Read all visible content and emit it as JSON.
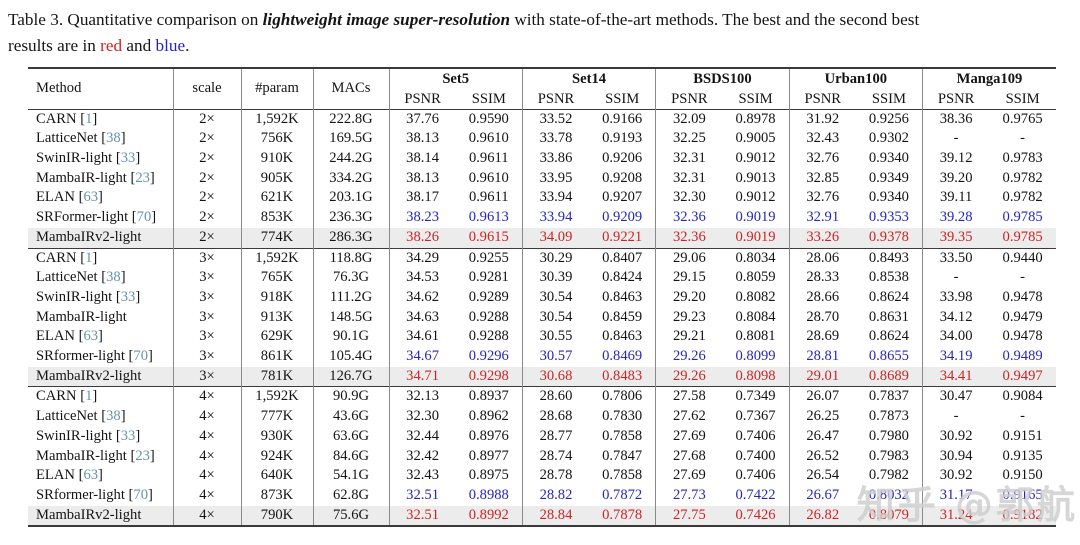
{
  "caption": {
    "label": "Table 3.",
    "body1": "  Quantitative comparison on ",
    "emph": "lightweight image super-resolution",
    "body2": " with state-of-the-art methods.  The best and the second best",
    "line2_prefix": "results are in ",
    "red_word": "red",
    "mid": " and ",
    "blue_word": "blue",
    "end": "."
  },
  "colors": {
    "best": "#cc2424",
    "second_best": "#2626bd",
    "citation": "#6394ad",
    "highlight_row": "#ececec"
  },
  "watermark": "知乎 @郭航",
  "table": {
    "header": {
      "method": "Method",
      "scale": "scale",
      "param": "#param",
      "macs": "MACs",
      "datasets": [
        "Set5",
        "Set14",
        "BSDS100",
        "Urban100",
        "Manga109"
      ],
      "metrics": [
        "PSNR",
        "SSIM"
      ]
    },
    "groups": [
      {
        "scale": "2×",
        "rows": [
          {
            "method": "CARN",
            "ref": "1",
            "scale": "2×",
            "params": "1,592K",
            "macs": "222.8G",
            "color": "",
            "highlight": false,
            "values": [
              "37.76",
              "0.9590",
              "33.52",
              "0.9166",
              "32.09",
              "0.8978",
              "31.92",
              "0.9256",
              "38.36",
              "0.9765"
            ]
          },
          {
            "method": "LatticeNet",
            "ref": "38",
            "scale": "2×",
            "params": "756K",
            "macs": "169.5G",
            "color": "",
            "highlight": false,
            "values": [
              "38.13",
              "0.9610",
              "33.78",
              "0.9193",
              "32.25",
              "0.9005",
              "32.43",
              "0.9302",
              "-",
              "-"
            ]
          },
          {
            "method": "SwinIR-light",
            "ref": "33",
            "scale": "2×",
            "params": "910K",
            "macs": "244.2G",
            "color": "",
            "highlight": false,
            "values": [
              "38.14",
              "0.9611",
              "33.86",
              "0.9206",
              "32.31",
              "0.9012",
              "32.76",
              "0.9340",
              "39.12",
              "0.9783"
            ]
          },
          {
            "method": "MambaIR-light",
            "ref": "23",
            "scale": "2×",
            "params": "905K",
            "macs": "334.2G",
            "color": "",
            "highlight": false,
            "values": [
              "38.13",
              "0.9610",
              "33.95",
              "0.9208",
              "32.31",
              "0.9013",
              "32.85",
              "0.9349",
              "39.20",
              "0.9782"
            ]
          },
          {
            "method": "ELAN",
            "ref": "63",
            "scale": "2×",
            "params": "621K",
            "macs": "203.1G",
            "color": "",
            "highlight": false,
            "values": [
              "38.17",
              "0.9611",
              "33.94",
              "0.9207",
              "32.30",
              "0.9012",
              "32.76",
              "0.9340",
              "39.11",
              "0.9782"
            ]
          },
          {
            "method": "SRFormer-light",
            "ref": "70",
            "scale": "2×",
            "params": "853K",
            "macs": "236.3G",
            "color": "blue",
            "highlight": false,
            "values": [
              "38.23",
              "0.9613",
              "33.94",
              "0.9209",
              "32.36",
              "0.9019",
              "32.91",
              "0.9353",
              "39.28",
              "0.9785"
            ]
          },
          {
            "method": "MambaIRv2-light",
            "ref": "",
            "scale": "2×",
            "params": "774K",
            "macs": "286.3G",
            "color": "red",
            "highlight": true,
            "values": [
              "38.26",
              "0.9615",
              "34.09",
              "0.9221",
              "32.36",
              "0.9019",
              "33.26",
              "0.9378",
              "39.35",
              "0.9785"
            ]
          }
        ]
      },
      {
        "scale": "3×",
        "rows": [
          {
            "method": "CARN",
            "ref": "1",
            "scale": "3×",
            "params": "1,592K",
            "macs": "118.8G",
            "color": "",
            "highlight": false,
            "values": [
              "34.29",
              "0.9255",
              "30.29",
              "0.8407",
              "29.06",
              "0.8034",
              "28.06",
              "0.8493",
              "33.50",
              "0.9440"
            ]
          },
          {
            "method": "LatticeNet",
            "ref": "38",
            "scale": "3×",
            "params": "765K",
            "macs": "76.3G",
            "color": "",
            "highlight": false,
            "values": [
              "34.53",
              "0.9281",
              "30.39",
              "0.8424",
              "29.15",
              "0.8059",
              "28.33",
              "0.8538",
              "-",
              "-"
            ]
          },
          {
            "method": "SwinIR-light",
            "ref": "33",
            "scale": "3×",
            "params": "918K",
            "macs": "111.2G",
            "color": "",
            "highlight": false,
            "values": [
              "34.62",
              "0.9289",
              "30.54",
              "0.8463",
              "29.20",
              "0.8082",
              "28.66",
              "0.8624",
              "33.98",
              "0.9478"
            ]
          },
          {
            "method": "MambaIR-light",
            "ref": "",
            "scale": "3×",
            "params": "913K",
            "macs": "148.5G",
            "color": "",
            "highlight": false,
            "values": [
              "34.63",
              "0.9288",
              "30.54",
              "0.8459",
              "29.23",
              "0.8084",
              "28.70",
              "0.8631",
              "34.12",
              "0.9479"
            ]
          },
          {
            "method": "ELAN",
            "ref": "63",
            "scale": "3×",
            "params": "629K",
            "macs": "90.1G",
            "color": "",
            "highlight": false,
            "values": [
              "34.61",
              "0.9288",
              "30.55",
              "0.8463",
              "29.21",
              "0.8081",
              "28.69",
              "0.8624",
              "34.00",
              "0.9478"
            ]
          },
          {
            "method": "SRformer-light",
            "ref": "70",
            "scale": "3×",
            "params": "861K",
            "macs": "105.4G",
            "color": "blue",
            "highlight": false,
            "values": [
              "34.67",
              "0.9296",
              "30.57",
              "0.8469",
              "29.26",
              "0.8099",
              "28.81",
              "0.8655",
              "34.19",
              "0.9489"
            ]
          },
          {
            "method": "MambaIRv2-light",
            "ref": "",
            "scale": "3×",
            "params": "781K",
            "macs": "126.7G",
            "color": "red",
            "highlight": true,
            "values": [
              "34.71",
              "0.9298",
              "30.68",
              "0.8483",
              "29.26",
              "0.8098",
              "29.01",
              "0.8689",
              "34.41",
              "0.9497"
            ]
          }
        ]
      },
      {
        "scale": "4×",
        "rows": [
          {
            "method": "CARN",
            "ref": "1",
            "scale": "4×",
            "params": "1,592K",
            "macs": "90.9G",
            "color": "",
            "highlight": false,
            "values": [
              "32.13",
              "0.8937",
              "28.60",
              "0.7806",
              "27.58",
              "0.7349",
              "26.07",
              "0.7837",
              "30.47",
              "0.9084"
            ]
          },
          {
            "method": "LatticeNet",
            "ref": "38",
            "scale": "4×",
            "params": "777K",
            "macs": "43.6G",
            "color": "",
            "highlight": false,
            "values": [
              "32.30",
              "0.8962",
              "28.68",
              "0.7830",
              "27.62",
              "0.7367",
              "26.25",
              "0.7873",
              "-",
              "-"
            ]
          },
          {
            "method": "SwinIR-light",
            "ref": "33",
            "scale": "4×",
            "params": "930K",
            "macs": "63.6G",
            "color": "",
            "highlight": false,
            "values": [
              "32.44",
              "0.8976",
              "28.77",
              "0.7858",
              "27.69",
              "0.7406",
              "26.47",
              "0.7980",
              "30.92",
              "0.9151"
            ]
          },
          {
            "method": "MambaIR-light",
            "ref": "23",
            "scale": "4×",
            "params": "924K",
            "macs": "84.6G",
            "color": "",
            "highlight": false,
            "values": [
              "32.42",
              "0.8977",
              "28.74",
              "0.7847",
              "27.68",
              "0.7400",
              "26.52",
              "0.7983",
              "30.94",
              "0.9135"
            ]
          },
          {
            "method": "ELAN",
            "ref": "63",
            "scale": "4×",
            "params": "640K",
            "macs": "54.1G",
            "color": "",
            "highlight": false,
            "values": [
              "32.43",
              "0.8975",
              "28.78",
              "0.7858",
              "27.69",
              "0.7406",
              "26.54",
              "0.7982",
              "30.92",
              "0.9150"
            ]
          },
          {
            "method": "SRformer-light",
            "ref": "70",
            "scale": "4×",
            "params": "873K",
            "macs": "62.8G",
            "color": "blue",
            "highlight": false,
            "values": [
              "32.51",
              "0.8988",
              "28.82",
              "0.7872",
              "27.73",
              "0.7422",
              "26.67",
              "0.8032",
              "31.17",
              "0.9165"
            ]
          },
          {
            "method": "MambaIRv2-light",
            "ref": "",
            "scale": "4×",
            "params": "790K",
            "macs": "75.6G",
            "color": "red",
            "highlight": true,
            "values": [
              "32.51",
              "0.8992",
              "28.84",
              "0.7878",
              "27.75",
              "0.7426",
              "26.82",
              "0.8079",
              "31.24",
              "0.9182"
            ]
          }
        ]
      }
    ]
  }
}
